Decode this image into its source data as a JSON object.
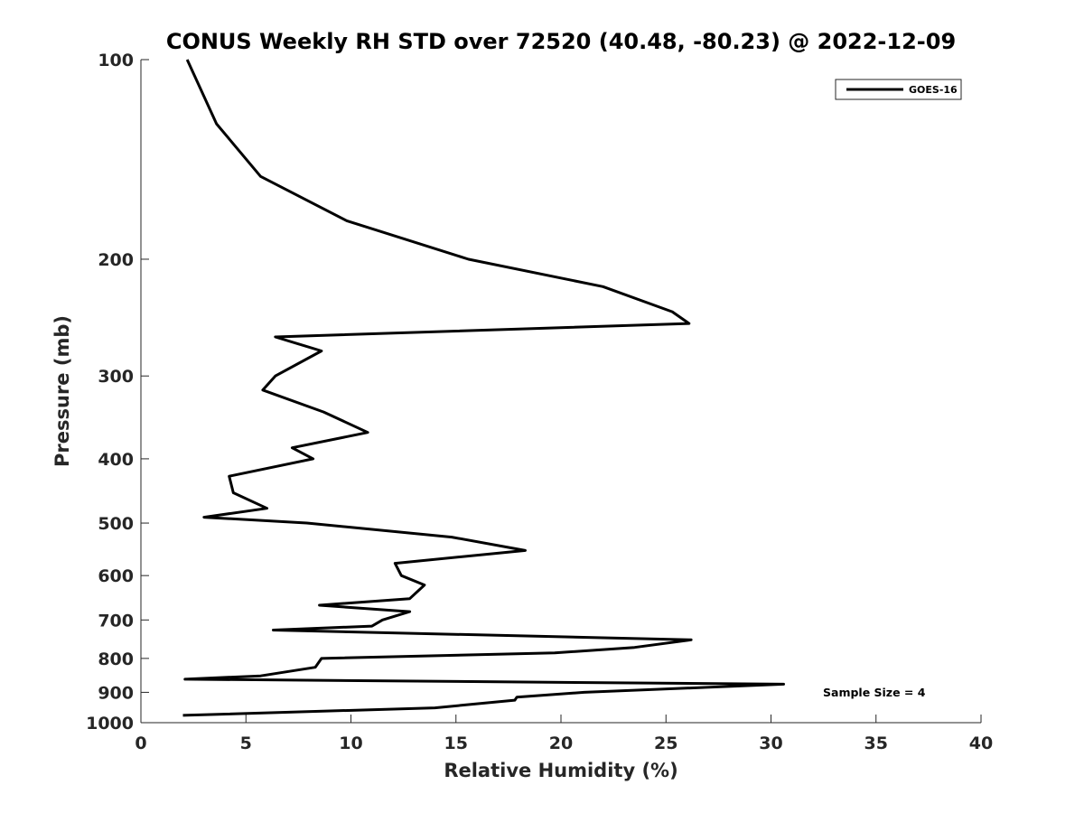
{
  "chart_data": {
    "type": "line",
    "title": "CONUS Weekly RH STD over 72520 (40.48, -80.23) @ 2022-12-09",
    "xlabel": "Relative Humidity (%)",
    "ylabel": "Pressure (mb)",
    "xlim": [
      0,
      40
    ],
    "ylim": [
      100,
      1000
    ],
    "y_scale": "log",
    "y_reversed": true,
    "xticks": [
      0,
      5,
      10,
      15,
      20,
      25,
      30,
      35,
      40
    ],
    "yticks": [
      100,
      200,
      300,
      400,
      500,
      600,
      700,
      800,
      900,
      1000
    ],
    "grid": false,
    "legend_position": "top-right",
    "annotation": "Sample Size = 4",
    "series": [
      {
        "name": "GOES-16",
        "color": "#000000",
        "points": [
          [
            2.2,
            100
          ],
          [
            3.6,
            125
          ],
          [
            5.7,
            150
          ],
          [
            9.8,
            175
          ],
          [
            15.6,
            200
          ],
          [
            22.0,
            220
          ],
          [
            25.3,
            240
          ],
          [
            26.1,
            250
          ],
          [
            6.4,
            262
          ],
          [
            8.6,
            275
          ],
          [
            6.4,
            300
          ],
          [
            5.8,
            315
          ],
          [
            8.7,
            340
          ],
          [
            10.8,
            365
          ],
          [
            7.2,
            385
          ],
          [
            8.2,
            400
          ],
          [
            4.2,
            425
          ],
          [
            4.4,
            450
          ],
          [
            6.0,
            475
          ],
          [
            3.0,
            490
          ],
          [
            7.9,
            500
          ],
          [
            14.8,
            525
          ],
          [
            18.3,
            550
          ],
          [
            12.1,
            575
          ],
          [
            12.4,
            600
          ],
          [
            13.5,
            620
          ],
          [
            12.8,
            650
          ],
          [
            8.5,
            665
          ],
          [
            12.8,
            680
          ],
          [
            11.5,
            700
          ],
          [
            11.0,
            715
          ],
          [
            6.3,
            725
          ],
          [
            26.2,
            750
          ],
          [
            23.5,
            770
          ],
          [
            19.7,
            785
          ],
          [
            8.6,
            800
          ],
          [
            8.3,
            825
          ],
          [
            5.7,
            850
          ],
          [
            2.1,
            860
          ],
          [
            30.6,
            875
          ],
          [
            21.1,
            900
          ],
          [
            17.9,
            915
          ],
          [
            17.8,
            925
          ],
          [
            14.0,
            950
          ],
          [
            2.0,
            975
          ]
        ]
      }
    ]
  }
}
